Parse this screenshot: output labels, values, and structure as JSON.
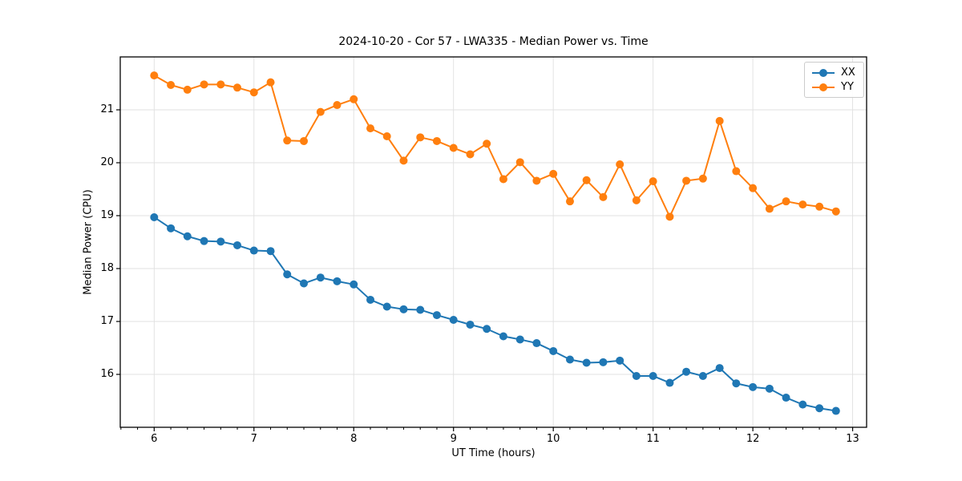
{
  "figure": {
    "title": "2024-10-20 - Cor 57 - LWA335 - Median Power vs. Time",
    "background": "#ffffff"
  },
  "axes": {
    "x": {
      "label": "UT Time (hours)",
      "tick_labels": [
        "6",
        "7",
        "8",
        "9",
        "10",
        "11",
        "12",
        "13"
      ],
      "tick_values": [
        6,
        7,
        8,
        9,
        10,
        11,
        12,
        13
      ],
      "minor_tick_interval": 0.1667
    },
    "y": {
      "label": "Median Power (CPU)",
      "tick_labels": [
        "16",
        "17",
        "18",
        "19",
        "20",
        "21"
      ],
      "tick_values": [
        16,
        17,
        18,
        19,
        20,
        21
      ]
    }
  },
  "legend": {
    "position": "upper-right",
    "items": [
      {
        "label": "XX",
        "color": "#1f77b4"
      },
      {
        "label": "YY",
        "color": "#ff7f0e"
      }
    ]
  },
  "style": {
    "grid_color": "#e0e0e0",
    "spine_color": "#000000",
    "tick_color": "#000000",
    "line_width": 2,
    "marker_radius": 5
  },
  "chart_data": {
    "type": "line",
    "title": "2024-10-20 - Cor 57 - LWA335 - Median Power vs. Time",
    "xlabel": "UT Time (hours)",
    "ylabel": "Median Power (CPU)",
    "xlim": [
      5.66,
      13.14
    ],
    "ylim": [
      15.0,
      22.0
    ],
    "grid": true,
    "legend_position": "upper right",
    "marker": "circle",
    "x": [
      6,
      6.167,
      6.333,
      6.5,
      6.667,
      6.833,
      7,
      7.167,
      7.333,
      7.5,
      7.667,
      7.833,
      8,
      8.167,
      8.333,
      8.5,
      8.667,
      8.833,
      9,
      9.167,
      9.333,
      9.5,
      9.667,
      9.833,
      10,
      10.167,
      10.333,
      10.5,
      10.667,
      10.833,
      11,
      11.167,
      11.333,
      11.5,
      11.667,
      11.833,
      12,
      12.167,
      12.333,
      12.5,
      12.667,
      12.833
    ],
    "series": [
      {
        "name": "XX",
        "color": "#1f77b4",
        "values": [
          18.97,
          18.76,
          18.61,
          18.52,
          18.51,
          18.44,
          18.34,
          18.33,
          17.89,
          17.72,
          17.83,
          17.76,
          17.7,
          17.41,
          17.28,
          17.23,
          17.22,
          17.12,
          17.03,
          16.94,
          16.86,
          16.72,
          16.66,
          16.59,
          16.44,
          16.28,
          16.22,
          16.23,
          16.26,
          15.97,
          15.97,
          15.84,
          16.05,
          15.97,
          16.12,
          15.83,
          15.76,
          15.73,
          15.56,
          15.43,
          15.36,
          15.31
        ]
      },
      {
        "name": "YY",
        "color": "#ff7f0e",
        "values": [
          21.65,
          21.47,
          21.38,
          21.48,
          21.48,
          21.42,
          21.33,
          21.52,
          20.42,
          20.41,
          20.96,
          21.09,
          21.2,
          20.65,
          20.5,
          20.04,
          20.48,
          20.41,
          20.28,
          20.16,
          20.36,
          19.69,
          20.01,
          19.66,
          19.79,
          19.27,
          19.67,
          19.35,
          19.97,
          19.29,
          19.65,
          18.98,
          19.66,
          19.7,
          20.79,
          19.84,
          19.52,
          19.13,
          19.27,
          19.21,
          19.17,
          19.08
        ]
      }
    ]
  }
}
